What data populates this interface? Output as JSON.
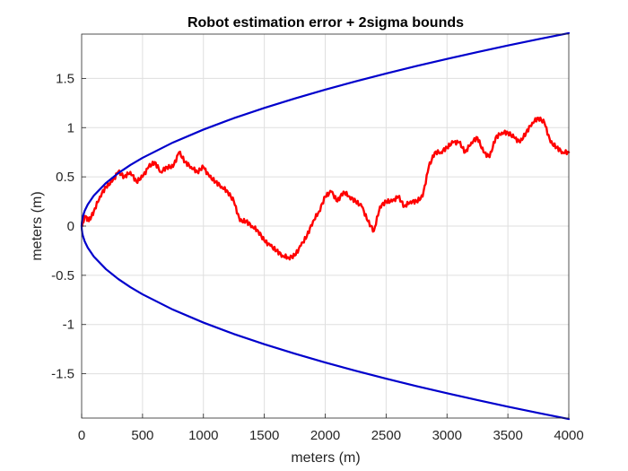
{
  "chart_data": {
    "type": "line",
    "title": "Robot estimation error + 2sigma bounds",
    "xlabel": "meters (m)",
    "ylabel": "meters (m)",
    "xlim": [
      0,
      4000
    ],
    "ylim": [
      -1.95,
      1.95
    ],
    "grid": true,
    "xticks": [
      0,
      500,
      1000,
      1500,
      2000,
      2500,
      3000,
      3500,
      4000
    ],
    "xtick_labels": [
      "0",
      "500",
      "1000",
      "1500",
      "2000",
      "2500",
      "3000",
      "3500",
      "4000"
    ],
    "yticks": [
      -1.5,
      -1,
      -0.5,
      0,
      0.5,
      1,
      1.5
    ],
    "ytick_labels": [
      "-1.5",
      "-1",
      "-0.5",
      "0",
      "0.5",
      "1",
      "1.5"
    ],
    "series": [
      {
        "color": "#ff0000",
        "x": [
          0,
          30,
          60,
          100,
          150,
          200,
          250,
          300,
          350,
          400,
          450,
          500,
          550,
          600,
          650,
          700,
          750,
          800,
          850,
          900,
          950,
          1000,
          1050,
          1100,
          1150,
          1200,
          1250,
          1300,
          1350,
          1400,
          1450,
          1500,
          1550,
          1600,
          1650,
          1700,
          1750,
          1800,
          1850,
          1900,
          1950,
          2000,
          2050,
          2100,
          2150,
          2200,
          2250,
          2300,
          2350,
          2400,
          2450,
          2500,
          2550,
          2600,
          2650,
          2700,
          2750,
          2800,
          2850,
          2900,
          2950,
          3000,
          3050,
          3100,
          3150,
          3200,
          3250,
          3300,
          3350,
          3400,
          3450,
          3500,
          3550,
          3600,
          3650,
          3700,
          3750,
          3800,
          3850,
          3900,
          3950,
          4000
        ],
        "y": [
          0,
          0.1,
          0.05,
          0.15,
          0.3,
          0.4,
          0.45,
          0.55,
          0.5,
          0.55,
          0.45,
          0.5,
          0.6,
          0.65,
          0.55,
          0.6,
          0.6,
          0.75,
          0.65,
          0.6,
          0.55,
          0.6,
          0.5,
          0.45,
          0.4,
          0.35,
          0.25,
          0.05,
          0.05,
          0.0,
          -0.05,
          -0.15,
          -0.2,
          -0.25,
          -0.3,
          -0.32,
          -0.3,
          -0.2,
          -0.1,
          0.05,
          0.15,
          0.3,
          0.35,
          0.25,
          0.35,
          0.3,
          0.25,
          0.2,
          0.05,
          -0.05,
          0.2,
          0.25,
          0.25,
          0.3,
          0.2,
          0.25,
          0.25,
          0.3,
          0.6,
          0.75,
          0.75,
          0.8,
          0.85,
          0.85,
          0.75,
          0.85,
          0.9,
          0.75,
          0.7,
          0.9,
          0.95,
          0.95,
          0.9,
          0.85,
          0.95,
          1.05,
          1.1,
          1.05,
          0.85,
          0.8,
          0.75,
          0.75
        ]
      },
      {
        "color": "#0000cc",
        "bound": "+2sigma",
        "x": [
          0,
          1,
          5,
          10,
          25,
          50,
          100,
          200,
          300,
          400,
          500,
          750,
          1000,
          1250,
          1500,
          1750,
          2000,
          2250,
          2500,
          2750,
          3000,
          3250,
          3500,
          3750,
          4000
        ],
        "y": [
          0,
          0.031,
          0.069,
          0.098,
          0.155,
          0.219,
          0.31,
          0.438,
          0.537,
          0.62,
          0.693,
          0.849,
          0.98,
          1.096,
          1.2,
          1.296,
          1.386,
          1.47,
          1.55,
          1.626,
          1.698,
          1.767,
          1.834,
          1.898,
          1.96
        ]
      },
      {
        "color": "#0000cc",
        "bound": "-2sigma",
        "x": [
          0,
          1,
          5,
          10,
          25,
          50,
          100,
          200,
          300,
          400,
          500,
          750,
          1000,
          1250,
          1500,
          1750,
          2000,
          2250,
          2500,
          2750,
          3000,
          3250,
          3500,
          3750,
          4000
        ],
        "y": [
          0,
          -0.031,
          -0.069,
          -0.098,
          -0.155,
          -0.219,
          -0.31,
          -0.438,
          -0.537,
          -0.62,
          -0.693,
          -0.849,
          -0.98,
          -1.096,
          -1.2,
          -1.296,
          -1.386,
          -1.47,
          -1.55,
          -1.626,
          -1.698,
          -1.767,
          -1.834,
          -1.898,
          -1.96
        ]
      }
    ]
  }
}
